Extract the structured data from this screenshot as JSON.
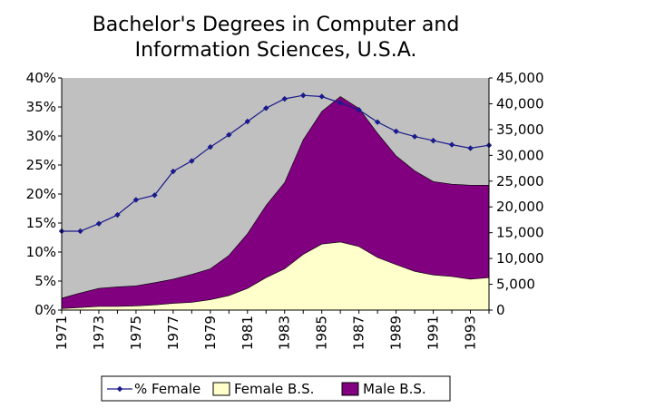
{
  "chart_data": {
    "type": "area",
    "title_lines": [
      "Bachelor's Degrees in Computer and",
      "Information Sciences, U.S.A."
    ],
    "years": [
      1971,
      1972,
      1973,
      1974,
      1975,
      1976,
      1977,
      1978,
      1979,
      1980,
      1981,
      1982,
      1983,
      1984,
      1985,
      1986,
      1987,
      1988,
      1989,
      1990,
      1991,
      1992,
      1993,
      1994
    ],
    "x_tick_labels": [
      "1971",
      "1973",
      "1975",
      "1977",
      "1979",
      "1981",
      "1983",
      "1985",
      "1987",
      "1989",
      "1991",
      "1993"
    ],
    "left_axis": {
      "ylim": [
        0,
        40
      ],
      "tick_labels": [
        "0%",
        "5%",
        "10%",
        "15%",
        "20%",
        "25%",
        "30%",
        "35%",
        "40%"
      ]
    },
    "right_axis": {
      "ylim": [
        0,
        45000
      ],
      "tick_labels": [
        "0",
        "5,000",
        "10,000",
        "15,000",
        "20,000",
        "25,000",
        "30,000",
        "35,000",
        "40,000",
        "45,000"
      ]
    },
    "series": [
      {
        "name": "% Female",
        "kind": "line",
        "axis": "left",
        "color": "#1a1a8c",
        "values": [
          13.6,
          13.6,
          14.9,
          16.4,
          19.0,
          19.8,
          23.9,
          25.7,
          28.1,
          30.2,
          32.5,
          34.8,
          36.4,
          37.0,
          36.8,
          35.7,
          34.5,
          32.4,
          30.8,
          29.9,
          29.2,
          28.5,
          27.9,
          28.4
        ]
      },
      {
        "name": "Female B.S.",
        "kind": "area",
        "axis": "right",
        "color": "#ffffcc",
        "values": [
          300,
          500,
          700,
          700,
          800,
          1000,
          1300,
          1500,
          2000,
          2800,
          4200,
          6300,
          8000,
          10800,
          12800,
          13200,
          12300,
          10200,
          8800,
          7500,
          6800,
          6500,
          6000,
          6300
        ]
      },
      {
        "name": "Male B.S.",
        "kind": "area",
        "axis": "right",
        "color": "#800080",
        "values": [
          2300,
          3300,
          4200,
          4500,
          4700,
          5300,
          6000,
          6900,
          8000,
          10600,
          14800,
          20300,
          24700,
          33000,
          38500,
          41400,
          39100,
          34300,
          29900,
          27000,
          24900,
          24400,
          24200,
          24200
        ]
      }
    ],
    "legend": {
      "position": "bottom",
      "items": [
        {
          "label": "% Female",
          "swatch": "line-diamond"
        },
        {
          "label": "Female B.S.",
          "swatch": "box-cream"
        },
        {
          "label": "Male B.S.",
          "swatch": "box-purple"
        }
      ]
    },
    "plot_background": "#c0c0c0",
    "grid": false
  }
}
